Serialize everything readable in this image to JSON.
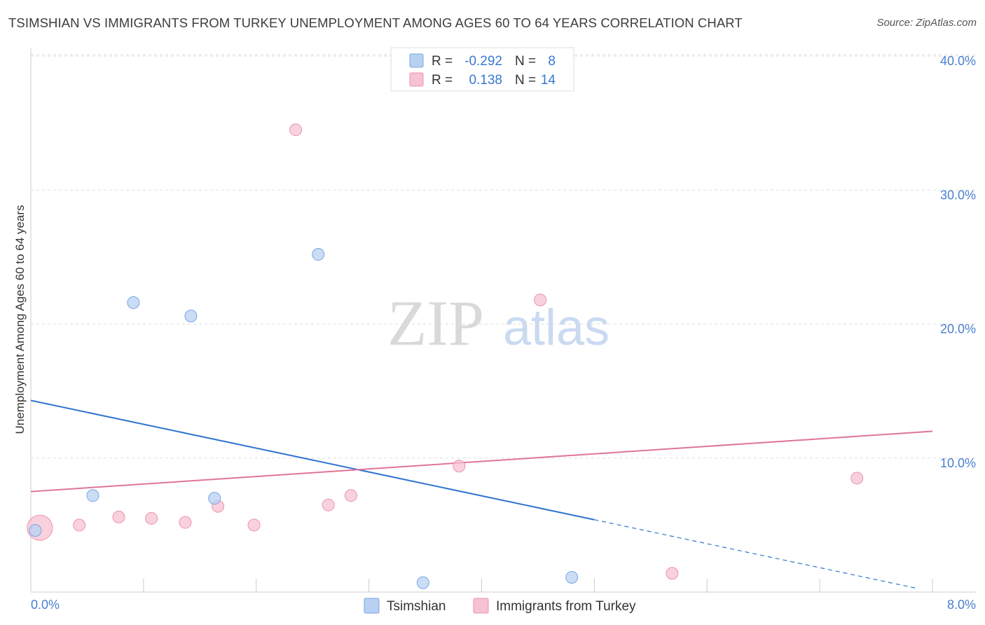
{
  "title": "TSIMSHIAN VS IMMIGRANTS FROM TURKEY UNEMPLOYMENT AMONG AGES 60 TO 64 YEARS CORRELATION CHART",
  "source": "Source: ZipAtlas.com",
  "watermark": {
    "zip": "ZIP",
    "atlas": "atlas"
  },
  "colors": {
    "tsimshian_fill": "#b8d1f2",
    "tsimshian_stroke": "#7aa6e0",
    "tsimshian_line": "#2f74d0",
    "turkey_fill": "#f7c2d1",
    "turkey_stroke": "#eb93ad",
    "turkey_line": "#e0739a",
    "tick_label": "#4a7fd0",
    "grid": "#dddddd"
  },
  "stats": [
    {
      "r_label": "R =",
      "r_value": "-0.292",
      "n_label": "N =",
      "n_value": "8"
    },
    {
      "r_label": "R =",
      "r_value": "0.138",
      "n_label": "N =",
      "n_value": "14"
    }
  ],
  "chart_data": {
    "type": "scatter",
    "title": "TSIMSHIAN VS IMMIGRANTS FROM TURKEY UNEMPLOYMENT AMONG AGES 60 TO 64 YEARS CORRELATION CHART",
    "xlabel": "",
    "ylabel": "Unemployment Among Ages 60 to 64 years",
    "xlim": [
      0,
      8
    ],
    "ylim": [
      0,
      40
    ],
    "x_tick_labels": [
      {
        "value": 0,
        "label": "0.0%"
      },
      {
        "value": 8,
        "label": "8.0%"
      }
    ],
    "y_tick_labels": [
      {
        "value": 10,
        "label": "10.0%"
      },
      {
        "value": 20,
        "label": "20.0%"
      },
      {
        "value": 30,
        "label": "30.0%"
      },
      {
        "value": 40,
        "label": "40.0%"
      }
    ],
    "series": [
      {
        "name": "Tsimshian",
        "points": [
          {
            "x": 0.04,
            "y": 4.6,
            "size": "normal"
          },
          {
            "x": 0.55,
            "y": 7.2,
            "size": "normal"
          },
          {
            "x": 0.91,
            "y": 21.6,
            "size": "normal"
          },
          {
            "x": 1.42,
            "y": 20.6,
            "size": "normal"
          },
          {
            "x": 1.63,
            "y": 7.0,
            "size": "normal"
          },
          {
            "x": 2.55,
            "y": 25.2,
            "size": "normal"
          },
          {
            "x": 3.48,
            "y": 0.7,
            "size": "normal"
          },
          {
            "x": 4.8,
            "y": 1.1,
            "size": "normal"
          }
        ],
        "trend": {
          "x_start": 0,
          "y_start": 14.3,
          "x_end": 5.0,
          "y_end": 5.4,
          "dashed_to_x": 7.85,
          "dashed_to_y": 0.3
        }
      },
      {
        "name": "Immigrants from Turkey",
        "points": [
          {
            "x": 0.08,
            "y": 4.8,
            "size": "large"
          },
          {
            "x": 0.43,
            "y": 5.0,
            "size": "normal"
          },
          {
            "x": 0.78,
            "y": 5.6,
            "size": "normal"
          },
          {
            "x": 1.07,
            "y": 5.5,
            "size": "normal"
          },
          {
            "x": 1.37,
            "y": 5.2,
            "size": "normal"
          },
          {
            "x": 1.66,
            "y": 6.4,
            "size": "normal"
          },
          {
            "x": 1.98,
            "y": 5.0,
            "size": "normal"
          },
          {
            "x": 2.35,
            "y": 34.5,
            "size": "normal"
          },
          {
            "x": 2.64,
            "y": 6.5,
            "size": "normal"
          },
          {
            "x": 2.84,
            "y": 7.2,
            "size": "normal"
          },
          {
            "x": 3.8,
            "y": 9.4,
            "size": "normal"
          },
          {
            "x": 4.52,
            "y": 21.8,
            "size": "normal"
          },
          {
            "x": 5.69,
            "y": 1.4,
            "size": "normal"
          },
          {
            "x": 7.33,
            "y": 8.5,
            "size": "normal"
          }
        ],
        "trend": {
          "x_start": 0,
          "y_start": 7.5,
          "x_end": 8.0,
          "y_end": 12.0
        }
      }
    ]
  }
}
